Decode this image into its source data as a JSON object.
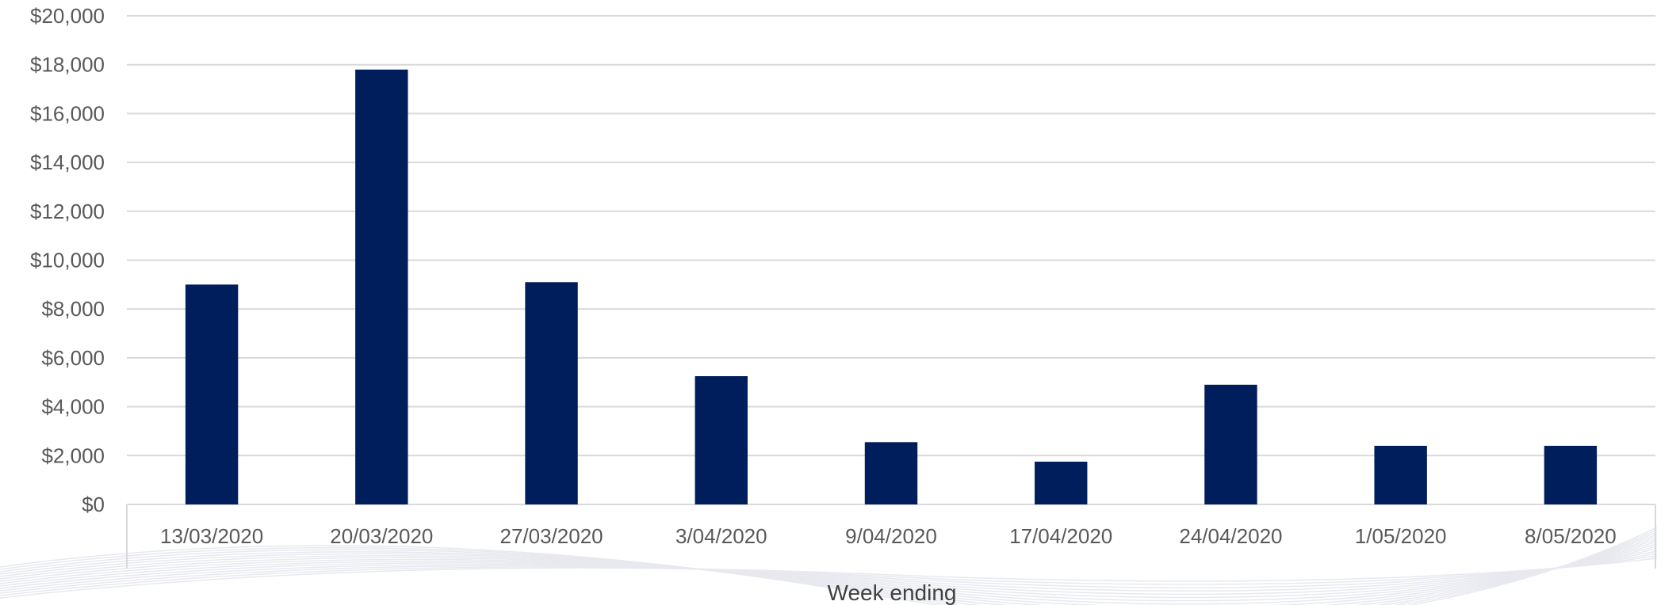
{
  "chart_data": {
    "type": "bar",
    "categories": [
      "13/03/2020",
      "20/03/2020",
      "27/03/2020",
      "3/04/2020",
      "9/04/2020",
      "17/04/2020",
      "24/04/2020",
      "1/05/2020",
      "8/05/2020"
    ],
    "values": [
      9000,
      17800,
      9100,
      5250,
      2550,
      1750,
      4900,
      2400,
      2400
    ],
    "y_ticks": [
      "$0",
      "$2,000",
      "$4,000",
      "$6,000",
      "$8,000",
      "$10,000",
      "$12,000",
      "$14,000",
      "$16,000",
      "$18,000",
      "$20,000"
    ],
    "xlabel": "Week ending",
    "ylabel": "",
    "ylim": [
      0,
      20000
    ],
    "grid": true,
    "bar_color": "#001E5C",
    "grid_color": "#D9D9D9",
    "decor_color": "#E7E9EF"
  }
}
